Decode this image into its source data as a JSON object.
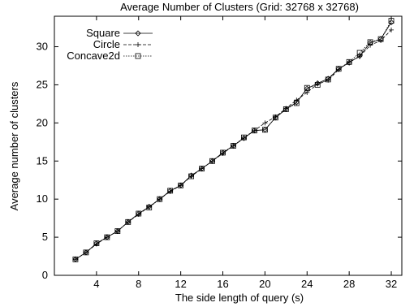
{
  "chart_data": {
    "type": "line",
    "title": "Average Number of Clusters (Grid: 32768 x 32768)",
    "xlabel": "The side length of query (s)",
    "ylabel": "Average number of clusters",
    "xlim": [
      0,
      33
    ],
    "ylim": [
      0,
      34
    ],
    "x_ticks": [
      4,
      8,
      12,
      16,
      20,
      24,
      28,
      32
    ],
    "y_ticks": [
      0,
      5,
      10,
      15,
      20,
      25,
      30
    ],
    "grid": false,
    "legend_position": "top-left",
    "x": [
      2,
      3,
      4,
      5,
      6,
      7,
      8,
      9,
      10,
      11,
      12,
      13,
      14,
      15,
      16,
      17,
      18,
      19,
      20,
      21,
      22,
      23,
      24,
      25,
      26,
      27,
      28,
      29,
      30,
      31,
      32
    ],
    "series": [
      {
        "name": "Square",
        "marker": "diamond",
        "line_style": "solid",
        "values": [
          2.1,
          3.0,
          4.2,
          5.0,
          5.8,
          7.0,
          8.1,
          9.0,
          10.0,
          11.1,
          11.8,
          13.1,
          14.0,
          15.0,
          16.1,
          17.0,
          18.0,
          19.0,
          19.1,
          20.7,
          21.8,
          22.7,
          24.5,
          25.2,
          25.8,
          27.1,
          27.9,
          28.8,
          30.5,
          31.0,
          33.2
        ],
        "color": "#000000"
      },
      {
        "name": "Circle",
        "marker": "plus",
        "line_style": "dashed",
        "values": [
          2.1,
          3.0,
          4.1,
          5.0,
          5.8,
          7.0,
          8.0,
          9.0,
          10.0,
          11.0,
          11.8,
          13.0,
          14.0,
          15.0,
          16.0,
          17.0,
          18.0,
          19.0,
          20.0,
          20.8,
          21.9,
          23.0,
          24.0,
          25.1,
          25.6,
          27.0,
          28.0,
          28.7,
          30.2,
          30.8,
          32.2
        ],
        "color": "#000000"
      },
      {
        "name": "Concave2d",
        "marker": "square",
        "line_style": "dotted",
        "values": [
          2.1,
          3.0,
          4.2,
          5.0,
          5.8,
          7.0,
          8.1,
          8.9,
          10.0,
          11.1,
          11.8,
          13.0,
          14.0,
          15.0,
          16.1,
          17.0,
          18.1,
          19.0,
          19.1,
          20.7,
          21.8,
          22.6,
          24.6,
          25.0,
          25.7,
          27.1,
          28.0,
          29.2,
          30.6,
          31.0,
          33.4
        ],
        "color": "#000000"
      }
    ]
  }
}
